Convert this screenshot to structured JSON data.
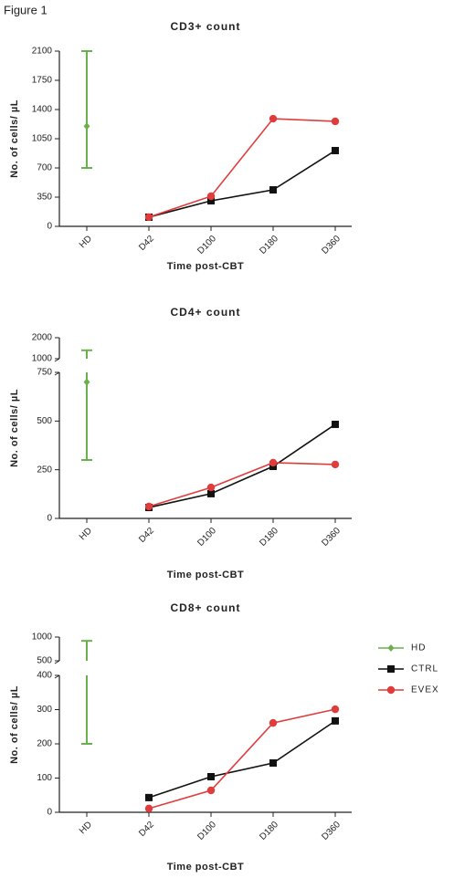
{
  "figure_label": "Figure 1",
  "chart_data": [
    {
      "type": "line",
      "title": "CD3+ count",
      "y_label": "No. of cells/ µL",
      "x_label": "Time post-CBT",
      "categories": [
        "HD",
        "D42",
        "D100",
        "D180",
        "D360"
      ],
      "ylim": [
        0,
        2100
      ],
      "yticks": [
        0,
        350,
        700,
        1050,
        1400,
        1750,
        2100
      ],
      "series": [
        {
          "color": "#6ab04c",
          "marker": "diamond",
          "values": [
            1200,
            null,
            null,
            null,
            null
          ],
          "low": [
            700,
            null,
            null,
            null,
            null
          ],
          "high": [
            2100,
            null,
            null,
            null,
            null
          ]
        },
        {
          "color": "#111111",
          "marker": "square",
          "values": [
            null,
            110,
            306,
            437,
            908
          ]
        },
        {
          "color": "#e03c3c",
          "marker": "circle",
          "values": [
            null,
            110,
            361,
            1290,
            1258
          ]
        }
      ]
    },
    {
      "type": "line",
      "title": "CD4+ count",
      "y_label": "No. of cells/ µL",
      "x_label": "Time post-CBT",
      "categories": [
        "HD",
        "D42",
        "D100",
        "D180",
        "D360"
      ],
      "ylim": [
        0,
        750
      ],
      "yticks": [
        0,
        250,
        500,
        750
      ],
      "ylim_upper": [
        1000,
        2000
      ],
      "yticks_upper": [
        1000,
        2000
      ],
      "series": [
        {
          "color": "#6ab04c",
          "marker": "diamond",
          "values": [
            700,
            null,
            null,
            null,
            null
          ],
          "low": [
            300,
            null,
            null,
            null,
            null
          ],
          "high": [
            1400,
            null,
            null,
            null,
            null
          ]
        },
        {
          "color": "#111111",
          "marker": "square",
          "values": [
            null,
            56,
            127,
            267,
            483
          ]
        },
        {
          "color": "#e03c3c",
          "marker": "circle",
          "values": [
            null,
            61,
            159,
            286,
            277
          ]
        }
      ]
    },
    {
      "type": "line",
      "title": "CD8+ count",
      "y_label": "No. of cells/ µL",
      "x_label": "Time post-CBT",
      "categories": [
        "HD",
        "D42",
        "D100",
        "D180",
        "D360"
      ],
      "ylim": [
        0,
        400
      ],
      "yticks": [
        0,
        100,
        200,
        300,
        400
      ],
      "ylim_upper": [
        500,
        1000
      ],
      "yticks_upper": [
        500,
        1000
      ],
      "legend": "right",
      "series": [
        {
          "name": "HD",
          "color": "#6ab04c",
          "marker": "diamond",
          "values": [
            null,
            null,
            null,
            null,
            null
          ],
          "low": [
            200,
            null,
            null,
            null,
            null
          ],
          "high": [
            920,
            null,
            null,
            null,
            null
          ]
        },
        {
          "name": "CTRL",
          "color": "#111111",
          "marker": "square",
          "values": [
            null,
            43,
            104,
            144,
            267
          ]
        },
        {
          "name": "EVEX",
          "color": "#e03c3c",
          "marker": "circle",
          "values": [
            null,
            11,
            64,
            261,
            301
          ]
        }
      ]
    }
  ]
}
